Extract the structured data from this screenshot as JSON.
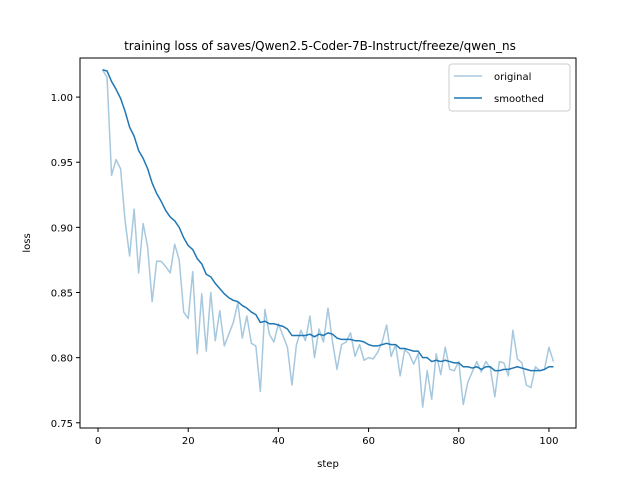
{
  "chart_data": {
    "type": "line",
    "title": "training loss of saves/Qwen2.5-Coder-7B-Instruct/freeze/qwen_ns",
    "xlabel": "step",
    "ylabel": "loss",
    "xlim": [
      -4,
      106
    ],
    "ylim": [
      0.746,
      1.03
    ],
    "xticks": [
      0,
      20,
      40,
      60,
      80,
      100
    ],
    "yticks": [
      0.75,
      0.8,
      0.85,
      0.9,
      0.95,
      1.0
    ],
    "xtick_labels": [
      "0",
      "20",
      "40",
      "60",
      "80",
      "100"
    ],
    "ytick_labels": [
      "0.75",
      "0.80",
      "0.85",
      "0.90",
      "0.95",
      "1.00"
    ],
    "grid": false,
    "legend_position": "top-right",
    "x": [
      1,
      2,
      3,
      4,
      5,
      6,
      7,
      8,
      9,
      10,
      11,
      12,
      13,
      14,
      15,
      16,
      17,
      18,
      19,
      20,
      21,
      22,
      23,
      24,
      25,
      26,
      27,
      28,
      29,
      30,
      31,
      32,
      33,
      34,
      35,
      36,
      37,
      38,
      39,
      40,
      41,
      42,
      43,
      44,
      45,
      46,
      47,
      48,
      49,
      50,
      51,
      52,
      53,
      54,
      55,
      56,
      57,
      58,
      59,
      60,
      61,
      62,
      63,
      64,
      65,
      66,
      67,
      68,
      69,
      70,
      71,
      72,
      73,
      74,
      75,
      76,
      77,
      78,
      79,
      80,
      81,
      82,
      83,
      84,
      85,
      86,
      87,
      88,
      89,
      90,
      91,
      92,
      93,
      94,
      95,
      96,
      97,
      98,
      99,
      100,
      101
    ],
    "series": [
      {
        "name": "original",
        "color": "#a6c8de",
        "values": [
          1.021,
          1.015,
          0.94,
          0.952,
          0.945,
          0.905,
          0.878,
          0.914,
          0.865,
          0.903,
          0.885,
          0.843,
          0.874,
          0.874,
          0.87,
          0.865,
          0.887,
          0.875,
          0.835,
          0.83,
          0.866,
          0.803,
          0.849,
          0.805,
          0.85,
          0.813,
          0.836,
          0.809,
          0.818,
          0.827,
          0.842,
          0.815,
          0.832,
          0.811,
          0.809,
          0.774,
          0.837,
          0.818,
          0.812,
          0.826,
          0.817,
          0.808,
          0.779,
          0.81,
          0.821,
          0.813,
          0.832,
          0.8,
          0.822,
          0.812,
          0.838,
          0.812,
          0.791,
          0.81,
          0.812,
          0.819,
          0.801,
          0.81,
          0.798,
          0.8,
          0.799,
          0.804,
          0.812,
          0.825,
          0.801,
          0.81,
          0.786,
          0.806,
          0.803,
          0.795,
          0.803,
          0.762,
          0.79,
          0.768,
          0.803,
          0.787,
          0.808,
          0.791,
          0.79,
          0.797,
          0.764,
          0.781,
          0.789,
          0.797,
          0.789,
          0.797,
          0.792,
          0.77,
          0.797,
          0.796,
          0.786,
          0.821,
          0.799,
          0.796,
          0.779,
          0.777,
          0.793,
          0.79,
          0.791,
          0.808,
          0.797
        ]
      },
      {
        "name": "smoothed",
        "color": "#1f77b4",
        "values": [
          1.021,
          1.02,
          1.012,
          1.006,
          0.999,
          0.989,
          0.977,
          0.97,
          0.959,
          0.953,
          0.945,
          0.934,
          0.926,
          0.92,
          0.913,
          0.908,
          0.905,
          0.9,
          0.892,
          0.886,
          0.883,
          0.876,
          0.872,
          0.864,
          0.862,
          0.857,
          0.853,
          0.849,
          0.846,
          0.844,
          0.843,
          0.84,
          0.838,
          0.835,
          0.833,
          0.827,
          0.828,
          0.826,
          0.826,
          0.825,
          0.824,
          0.822,
          0.817,
          0.817,
          0.817,
          0.817,
          0.818,
          0.816,
          0.818,
          0.817,
          0.819,
          0.818,
          0.815,
          0.814,
          0.814,
          0.814,
          0.813,
          0.813,
          0.812,
          0.81,
          0.809,
          0.809,
          0.81,
          0.811,
          0.81,
          0.81,
          0.807,
          0.807,
          0.806,
          0.805,
          0.805,
          0.8,
          0.8,
          0.797,
          0.798,
          0.797,
          0.798,
          0.797,
          0.796,
          0.796,
          0.793,
          0.793,
          0.792,
          0.793,
          0.791,
          0.793,
          0.793,
          0.79,
          0.79,
          0.791,
          0.791,
          0.792,
          0.793,
          0.792,
          0.791,
          0.79,
          0.79,
          0.79,
          0.791,
          0.793,
          0.793
        ]
      }
    ]
  }
}
